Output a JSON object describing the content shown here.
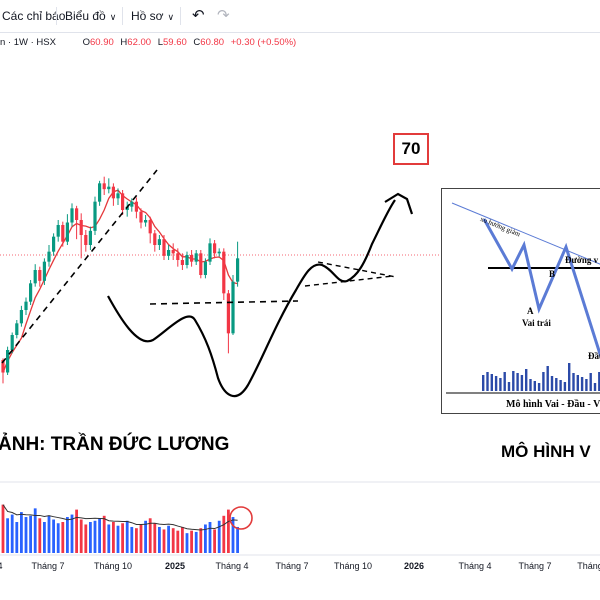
{
  "toolbar": {
    "indicators_label": "Các chỉ báo",
    "chart_type_label": "Biểu đồ",
    "profile_label": "Hồ sơ"
  },
  "legend": {
    "symbol": "n · 1W · HSX",
    "open_label": "O",
    "open_value": "60.90",
    "high_label": "H",
    "high_value": "62.00",
    "low_label": "L",
    "low_value": "59.60",
    "close_label": "C",
    "close_value": "60.80",
    "change": "+0.30 (+0.50%)"
  },
  "annotations": {
    "author": "ẢNH: TRẦN ĐỨC LƯƠNG",
    "pattern_title": "MÔ HÌNH V",
    "target_badge": "70"
  },
  "inset": {
    "trend_label": "xu hướng giảm",
    "neckline_label": "Đường v",
    "point_a": "A",
    "point_b": "B",
    "left_shoulder": "Vai trái",
    "head": "Đầu",
    "caption": "Mô hình Vai - Đầu - V"
  },
  "colors": {
    "up": "#089981",
    "down": "#f23645",
    "ma": "#e5383b",
    "volume_up": "#2962ff",
    "volume_down": "#f23645"
  },
  "chart_data": {
    "type": "candlestick",
    "interval": "1W",
    "x_ticks": [
      "4",
      "Tháng 7",
      "Tháng 10",
      "2025",
      "Tháng 4",
      "Tháng 7",
      "Tháng 10",
      "2026",
      "Tháng 4",
      "Tháng 7",
      "Tháng"
    ],
    "candles": [
      [
        0.3,
        0.15,
        0.32,
        0.02
      ],
      [
        0.15,
        0.42,
        0.46,
        0.12
      ],
      [
        0.42,
        0.6,
        0.63,
        0.38
      ],
      [
        0.6,
        0.74,
        0.78,
        0.56
      ],
      [
        0.74,
        0.9,
        0.95,
        0.7
      ],
      [
        0.9,
        1.0,
        1.05,
        0.84
      ],
      [
        1.0,
        1.22,
        1.26,
        0.96
      ],
      [
        1.22,
        1.38,
        1.45,
        1.18
      ],
      [
        1.38,
        1.25,
        1.42,
        1.18
      ],
      [
        1.25,
        1.48,
        1.52,
        1.2
      ],
      [
        1.48,
        1.6,
        1.68,
        1.42
      ],
      [
        1.6,
        1.78,
        1.82,
        1.55
      ],
      [
        1.78,
        1.92,
        1.98,
        1.72
      ],
      [
        1.92,
        1.72,
        1.96,
        1.66
      ],
      [
        1.72,
        1.95,
        2.05,
        1.68
      ],
      [
        1.95,
        2.12,
        2.18,
        1.9
      ],
      [
        2.12,
        1.98,
        2.15,
        1.75
      ],
      [
        1.98,
        1.8,
        2.06,
        1.52
      ],
      [
        1.8,
        1.68,
        1.86,
        1.6
      ],
      [
        1.68,
        1.85,
        1.9,
        1.62
      ],
      [
        1.85,
        2.2,
        2.26,
        1.8
      ],
      [
        2.2,
        2.42,
        2.45,
        2.15
      ],
      [
        2.42,
        2.35,
        2.5,
        2.28
      ],
      [
        2.35,
        2.38,
        2.48,
        2.3
      ],
      [
        2.38,
        2.24,
        2.42,
        2.15
      ],
      [
        2.24,
        2.3,
        2.36,
        2.16
      ],
      [
        2.3,
        2.1,
        2.34,
        2.04
      ],
      [
        2.1,
        2.14,
        2.2,
        2.02
      ],
      [
        2.14,
        2.2,
        2.24,
        2.08
      ],
      [
        2.2,
        2.08,
        2.25,
        2.0
      ],
      [
        2.08,
        1.95,
        2.12,
        1.88
      ],
      [
        1.95,
        1.98,
        2.04,
        1.9
      ],
      [
        1.98,
        1.82,
        2.02,
        1.7
      ],
      [
        1.82,
        1.68,
        1.86,
        1.6
      ],
      [
        1.68,
        1.75,
        1.8,
        1.62
      ],
      [
        1.75,
        1.55,
        1.8,
        1.5
      ],
      [
        1.55,
        1.62,
        1.68,
        1.5
      ],
      [
        1.62,
        1.58,
        1.7,
        1.5
      ],
      [
        1.58,
        1.5,
        1.64,
        1.42
      ],
      [
        1.5,
        1.44,
        1.58,
        1.38
      ],
      [
        1.44,
        1.56,
        1.6,
        1.4
      ],
      [
        1.56,
        1.48,
        1.62,
        1.42
      ],
      [
        1.48,
        1.58,
        1.62,
        1.44
      ],
      [
        1.58,
        1.32,
        1.62,
        1.28
      ],
      [
        1.32,
        1.48,
        1.52,
        1.28
      ],
      [
        1.48,
        1.7,
        1.76,
        1.44
      ],
      [
        1.7,
        1.58,
        1.74,
        1.52
      ],
      [
        1.58,
        1.6,
        1.64,
        1.54
      ],
      [
        1.6,
        1.1,
        1.64,
        1.02
      ],
      [
        1.1,
        0.62,
        1.14,
        0.38
      ],
      [
        0.62,
        1.24,
        1.32,
        0.6
      ],
      [
        1.24,
        1.52,
        1.72,
        1.18
      ]
    ],
    "volume": [
      0.78,
      0.56,
      0.62,
      0.5,
      0.66,
      0.58,
      0.6,
      0.72,
      0.56,
      0.5,
      0.6,
      0.54,
      0.48,
      0.5,
      0.58,
      0.62,
      0.7,
      0.54,
      0.46,
      0.5,
      0.52,
      0.56,
      0.6,
      0.46,
      0.5,
      0.44,
      0.48,
      0.52,
      0.42,
      0.4,
      0.46,
      0.52,
      0.56,
      0.48,
      0.42,
      0.38,
      0.44,
      0.4,
      0.36,
      0.42,
      0.32,
      0.36,
      0.34,
      0.4,
      0.46,
      0.5,
      0.38,
      0.52,
      0.6,
      0.7,
      0.58,
      0.42
    ]
  }
}
